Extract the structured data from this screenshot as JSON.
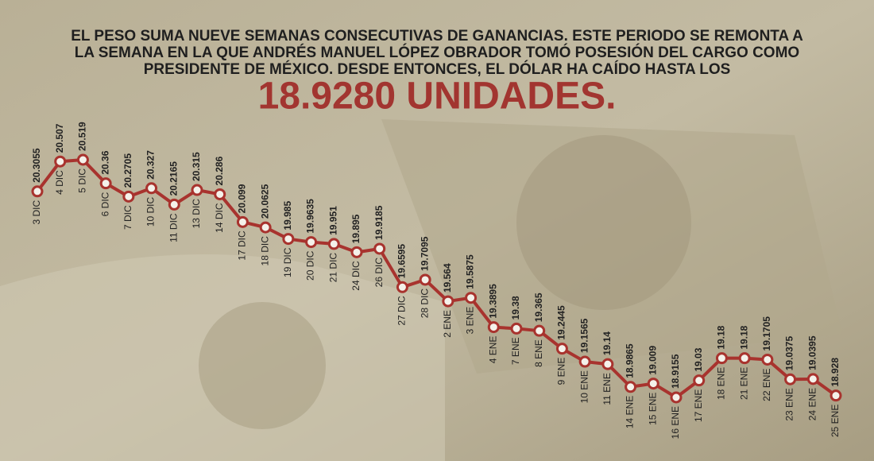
{
  "chart_data": {
    "type": "line",
    "title": [
      "EL PESO SUMA NUEVE SEMANAS CONSECUTIVAS DE GANANCIAS. ESTE PERIODO SE REMONTA A",
      "LA SEMANA EN LA QUE ANDRÉS MANUEL LÓPEZ OBRADOR TOMÓ POSESIÓN DEL CARGO COMO",
      "PRESIDENTE DE MÉXICO. DESDE ENTONCES, EL DÓLAR HA CAÍDO HASTA LOS"
    ],
    "headline": "18.9280 UNIDADES.",
    "color": "#a8332e",
    "categories": [
      "3 DIC",
      "4 DIC",
      "5 DIC",
      "6 DIC",
      "7 DIC",
      "10 DIC",
      "11 DIC",
      "13 DIC",
      "14 DIC",
      "17 DIC",
      "18 DIC",
      "19 DIC",
      "20 DIC",
      "21 DIC",
      "24 DIC",
      "26 DIC",
      "27 DIC",
      "28 DIC",
      "2 ENE",
      "3 ENE",
      "4 ENE",
      "7 ENE",
      "8 ENE",
      "9 ENE",
      "10 ENE",
      "11 ENE",
      "14 ENE",
      "15 ENE",
      "16 ENE",
      "17 ENE",
      "18 ENE",
      "21 ENE",
      "22 ENE",
      "23 ENE",
      "24 ENE",
      "25 ENE"
    ],
    "values": [
      20.3055,
      20.507,
      20.519,
      20.36,
      20.2705,
      20.327,
      20.2165,
      20.315,
      20.286,
      20.099,
      20.0625,
      19.985,
      19.9635,
      19.951,
      19.895,
      19.9185,
      19.6595,
      19.7095,
      19.564,
      19.5875,
      19.3895,
      19.38,
      19.365,
      19.2445,
      19.1565,
      19.14,
      18.9865,
      19.009,
      18.9155,
      19.03,
      19.18,
      19.18,
      19.1705,
      19.0375,
      19.0395,
      18.928
    ]
  }
}
